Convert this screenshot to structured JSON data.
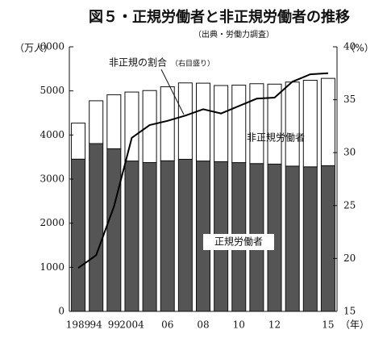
{
  "chart_data": {
    "type": "bar_line",
    "title": "図５・正規労働者と非正規労働者の推移",
    "subtitle": "（出典・労働力調査）",
    "y_label": "（万人）",
    "y2_label": "（%）",
    "x_label": "（年）",
    "annotation": "（右目盛り）",
    "categories": [
      "1989",
      "94",
      "99",
      "2004",
      null,
      "06",
      null,
      "08",
      null,
      "10",
      null,
      "12",
      null,
      null,
      "15"
    ],
    "series": [
      {
        "name": "正規労働者",
        "color": "#555555",
        "values": [
          3452,
          3805,
          3688,
          3410,
          3375,
          3415,
          3449,
          3410,
          3395,
          3374,
          3352,
          3340,
          3294,
          3278,
          3304
        ]
      },
      {
        "name": "非正規労働者",
        "color": "#ffffff",
        "values": [
          817,
          971,
          1225,
          1564,
          1633,
          1678,
          1732,
          1765,
          1727,
          1756,
          1811,
          1813,
          1906,
          1962,
          1980
        ]
      },
      {
        "name": "非正規の割合",
        "color": "#000000",
        "axis": "y2",
        "values": [
          19.1,
          20.3,
          24.9,
          31.4,
          32.6,
          33.0,
          33.5,
          34.1,
          33.7,
          34.4,
          35.1,
          35.2,
          36.7,
          37.4,
          37.5
        ]
      }
    ],
    "ylim": [
      0,
      6000
    ],
    "yticks": [
      0,
      1000,
      2000,
      3000,
      4000,
      5000,
      6000
    ],
    "y2lim": [
      15,
      40
    ],
    "y2ticks": [
      15,
      20,
      25,
      30,
      35,
      40
    ]
  }
}
